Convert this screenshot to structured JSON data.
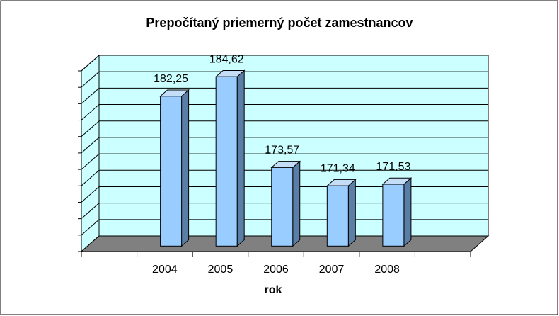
{
  "chart_data": {
    "type": "bar3d",
    "title": "Prepočítaný priemerný počet zamestnancov",
    "x_label": "rok",
    "categories": [
      "2004",
      "2005",
      "2006",
      "2007",
      "2008"
    ],
    "values": [
      182.25,
      184.62,
      173.57,
      171.34,
      171.53
    ],
    "value_labels": [
      "182,25",
      "184,62",
      "173,57",
      "171,34",
      "171,53"
    ],
    "color": "#99ccff",
    "ylim": [
      164,
      186
    ],
    "yticks": [
      164,
      166,
      168,
      170,
      172,
      174,
      176,
      178,
      180,
      182,
      184,
      186
    ],
    "grid": true
  }
}
